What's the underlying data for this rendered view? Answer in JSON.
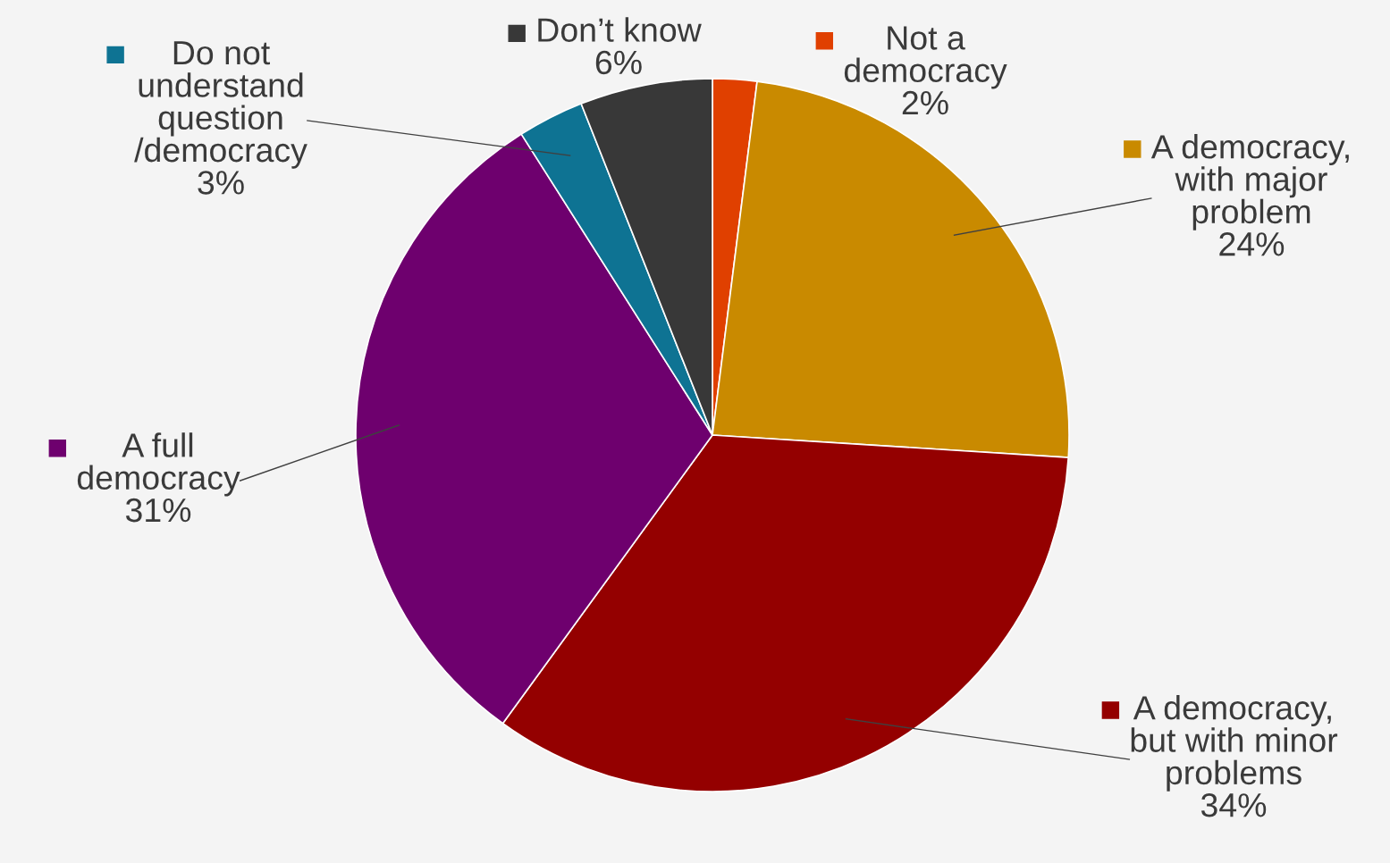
{
  "chart_data": {
    "type": "pie",
    "categories": [
      "Not a\ndemocracy",
      "A democracy,\nwith major\nproblem",
      "A democracy,\nbut with minor\nproblems",
      "A full\ndemocracy",
      "Do not\nunderstand\nquestion\n/democracy",
      "Don’t know"
    ],
    "values": [
      2,
      24,
      34,
      31,
      3,
      6
    ],
    "colors": [
      "#e04000",
      "#c98a00",
      "#940000",
      "#6e006e",
      "#0e7393",
      "#383838"
    ],
    "value_labels": [
      "2%",
      "24%",
      "34%",
      "31%",
      "3%",
      "6%"
    ],
    "legend": "top"
  }
}
